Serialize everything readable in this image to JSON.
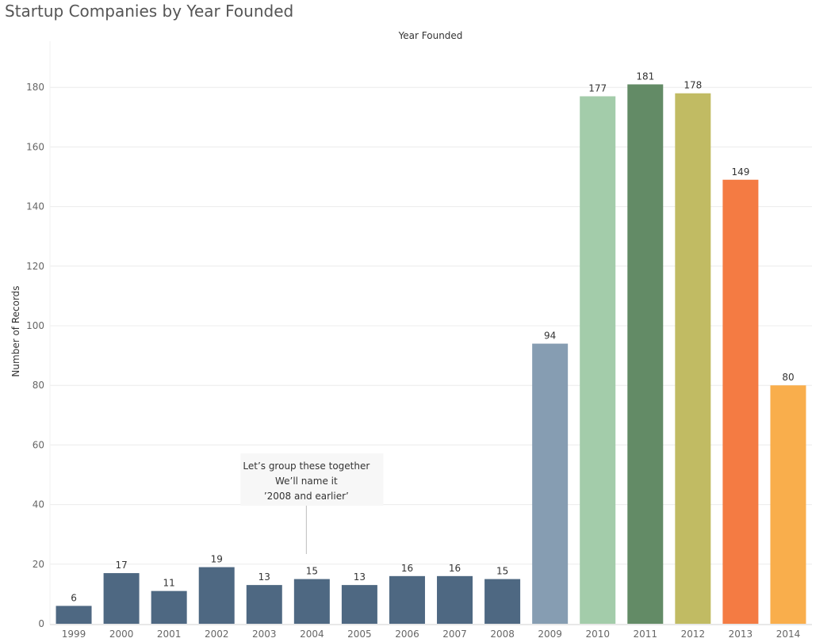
{
  "title": "Startup Companies by Year Founded",
  "chart_data": {
    "type": "bar",
    "title": "Startup Companies by Year Founded",
    "xlabel": "Year Founded",
    "ylabel": "Number of Records",
    "ylim": [
      0,
      190
    ],
    "yticks": [
      0,
      20,
      40,
      60,
      80,
      100,
      120,
      140,
      160,
      180
    ],
    "grid": "horizontal",
    "categories": [
      "1999",
      "2000",
      "2001",
      "2002",
      "2003",
      "2004",
      "2005",
      "2006",
      "2007",
      "2008",
      "2009",
      "2010",
      "2011",
      "2012",
      "2013",
      "2014"
    ],
    "values": [
      6,
      17,
      11,
      19,
      13,
      15,
      13,
      16,
      16,
      15,
      94,
      177,
      181,
      178,
      149,
      80
    ],
    "colors": [
      "#4e6882",
      "#4e6882",
      "#4e6882",
      "#4e6882",
      "#4e6882",
      "#4e6882",
      "#4e6882",
      "#4e6882",
      "#4e6882",
      "#4e6882",
      "#869db2",
      "#a3ccaa",
      "#638b66",
      "#c1bb63",
      "#f47b43",
      "#f9ae4c"
    ],
    "annotation": {
      "lines": [
        "Let’s group these together",
        "We’ll name it",
        "’2008 and earlier’"
      ],
      "target_category": "2004"
    }
  }
}
